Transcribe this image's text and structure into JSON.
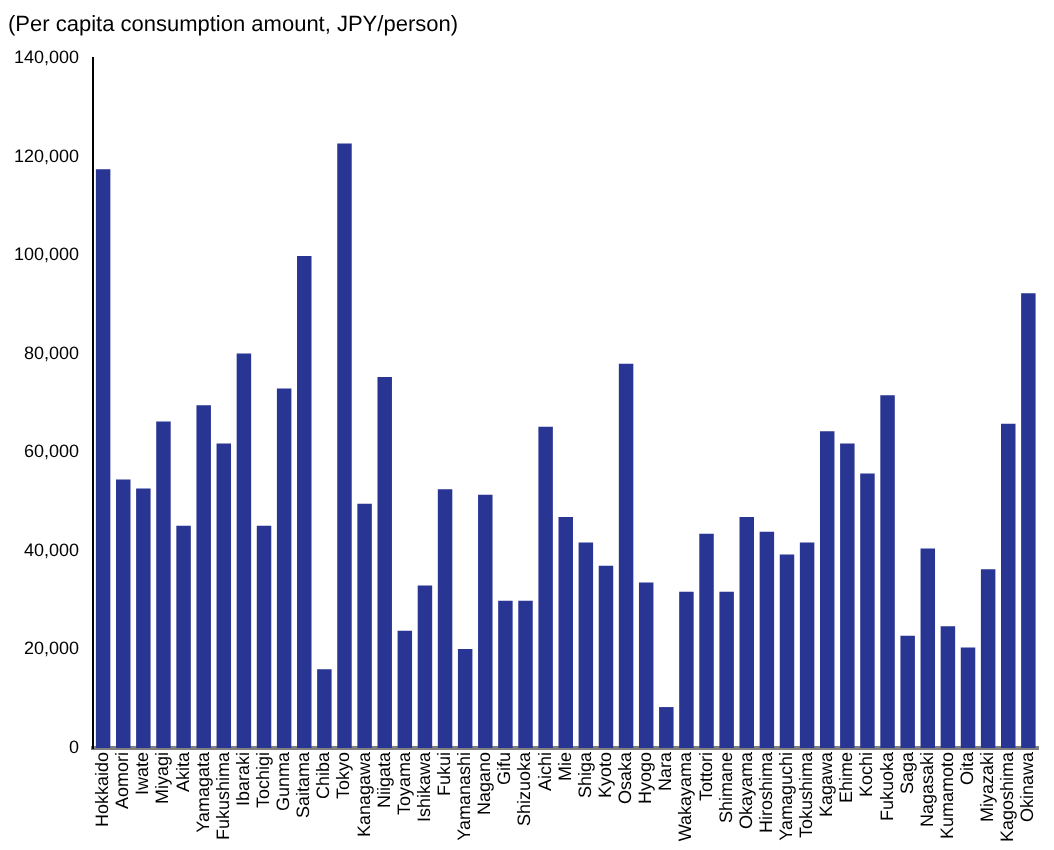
{
  "chart_data": {
    "type": "bar",
    "ylabel": "(Per capita consumption amount, JPY/person)",
    "categories": [
      "Hokkaido",
      "Aomori",
      "Iwate",
      "Miyagi",
      "Akita",
      "Yamagata",
      "Fukushima",
      "Ibaraki",
      "Tochigi",
      "Gunma",
      "Saitama",
      "Chiba",
      "Tokyo",
      "Kanagawa",
      "Niigata",
      "Toyama",
      "Ishikawa",
      "Fukui",
      "Yamanashi",
      "Nagano",
      "Gifu",
      "Shizuoka",
      "Aichi",
      "Mie",
      "Shiga",
      "Kyoto",
      "Osaka",
      "Hyogo",
      "Nara",
      "Wakayama",
      "Tottori",
      "Shimane",
      "Okayama",
      "Hiroshima",
      "Yamaguchi",
      "Tokushima",
      "Kagawa",
      "Ehime",
      "Kochi",
      "Fukuoka",
      "Saga",
      "Nagasaki",
      "Kumamoto",
      "Oita",
      "Miyazaki",
      "Kagoshima",
      "Okinawa"
    ],
    "values": [
      117500,
      54500,
      52700,
      66300,
      45100,
      69600,
      61800,
      80100,
      45100,
      73000,
      99900,
      16000,
      122700,
      49600,
      75300,
      23800,
      33000,
      52500,
      20100,
      51400,
      29900,
      29900,
      65200,
      46900,
      41700,
      37000,
      78000,
      33600,
      8300,
      31700,
      43500,
      31700,
      46900,
      43900,
      39300,
      41700,
      64300,
      61800,
      55700,
      71600,
      22800,
      40500,
      24700,
      20400,
      36300,
      65800,
      92300
    ],
    "color": "#283593",
    "ylim": [
      0,
      140000
    ],
    "yticks": [
      {
        "value": 0,
        "label": "0"
      },
      {
        "value": 20000,
        "label": "20,000"
      },
      {
        "value": 40000,
        "label": "40,000"
      },
      {
        "value": 60000,
        "label": "60,000"
      },
      {
        "value": 80000,
        "label": "80,000"
      },
      {
        "value": 100000,
        "label": "100,000"
      },
      {
        "value": 120000,
        "label": "120,000"
      },
      {
        "value": 140000,
        "label": "140,000"
      }
    ],
    "grid": false,
    "legend": false
  }
}
